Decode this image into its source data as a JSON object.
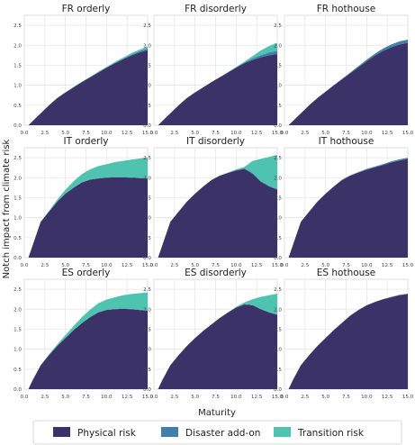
{
  "figure": {
    "xlabel": "Maturity",
    "ylabel": "Notch impact from climate risk"
  },
  "legend": {
    "items": [
      {
        "label": "Physical risk",
        "color": "#3b3268"
      },
      {
        "label": "Disaster add-on",
        "color": "#3f7fab"
      },
      {
        "label": "Transition risk",
        "color": "#4ec3b0"
      }
    ]
  },
  "chart_data": {
    "type": "area",
    "stacked": true,
    "x": [
      0.5,
      1,
      2,
      3,
      4,
      5,
      6,
      7,
      8,
      9,
      10,
      11,
      12,
      13,
      14,
      15
    ],
    "xticks": [
      "0.0",
      "2.5",
      "5.0",
      "7.5",
      "10.0",
      "12.5",
      "15.0"
    ],
    "xlim": [
      0,
      15
    ],
    "layout": {
      "rows": 3,
      "cols": 3,
      "sharey": "row"
    },
    "rows": [
      {
        "ylim": [
          0,
          2.75
        ],
        "yticks": [
          "0.0",
          "0.5",
          "1.0",
          "1.5",
          "2.0",
          "2.5"
        ]
      },
      {
        "ylim": [
          0,
          2.75
        ],
        "yticks": [
          "0.0",
          "0.5",
          "1.0",
          "1.5",
          "2.0",
          "2.5"
        ]
      },
      {
        "ylim": [
          0,
          2.75
        ],
        "yticks": [
          "0.0",
          "0.5",
          "1.0",
          "1.5",
          "2.0",
          "2.5"
        ]
      }
    ],
    "legend_placement": "bottom-center",
    "grid": true,
    "panels": [
      {
        "title": "FR orderly",
        "row": 0,
        "col": 0,
        "series": [
          {
            "name": "Physical risk",
            "values": [
              0.0,
              0.1,
              0.3,
              0.5,
              0.68,
              0.82,
              0.95,
              1.08,
              1.2,
              1.32,
              1.44,
              1.55,
              1.65,
              1.74,
              1.82,
              1.88
            ]
          },
          {
            "name": "Disaster add-on",
            "values": [
              0,
              0,
              0,
              0,
              0,
              0,
              0,
              0,
              0,
              0,
              0,
              0,
              0.01,
              0.02,
              0.03,
              0.04
            ]
          },
          {
            "name": "Transition risk",
            "values": [
              0,
              0,
              0,
              0,
              0,
              0,
              0.01,
              0.01,
              0.01,
              0.02,
              0.02,
              0.03,
              0.03,
              0.04,
              0.04,
              0.05
            ]
          }
        ]
      },
      {
        "title": "FR disorderly",
        "row": 0,
        "col": 1,
        "series": [
          {
            "name": "Physical risk",
            "values": [
              0.0,
              0.1,
              0.3,
              0.5,
              0.68,
              0.82,
              0.95,
              1.08,
              1.2,
              1.32,
              1.44,
              1.55,
              1.63,
              1.7,
              1.75,
              1.78
            ]
          },
          {
            "name": "Disaster add-on",
            "values": [
              0,
              0,
              0,
              0,
              0,
              0,
              0,
              0,
              0,
              0,
              0.01,
              0.02,
              0.04,
              0.05,
              0.07,
              0.08
            ]
          },
          {
            "name": "Transition risk",
            "values": [
              0,
              0,
              0,
              0,
              0,
              0,
              0,
              0,
              0,
              0.01,
              0.01,
              0.02,
              0.06,
              0.12,
              0.16,
              0.2
            ]
          }
        ]
      },
      {
        "title": "FR hothouse",
        "row": 0,
        "col": 2,
        "series": [
          {
            "name": "Physical risk",
            "values": [
              0.0,
              0.1,
              0.3,
              0.5,
              0.68,
              0.84,
              1.0,
              1.15,
              1.3,
              1.45,
              1.6,
              1.74,
              1.86,
              1.95,
              2.02,
              2.06
            ]
          },
          {
            "name": "Disaster add-on",
            "values": [
              0,
              0,
              0,
              0,
              0,
              0,
              0,
              0.01,
              0.02,
              0.03,
              0.04,
              0.05,
              0.06,
              0.07,
              0.08,
              0.08
            ]
          },
          {
            "name": "Transition risk",
            "values": [
              0,
              0,
              0,
              0,
              0,
              0,
              0,
              0,
              0,
              0,
              0,
              0,
              0,
              0,
              0,
              0
            ]
          }
        ]
      },
      {
        "title": "IT orderly",
        "row": 1,
        "col": 0,
        "series": [
          {
            "name": "Physical risk",
            "values": [
              0.0,
              0.3,
              0.9,
              1.15,
              1.4,
              1.6,
              1.75,
              1.88,
              1.95,
              1.98,
              2.0,
              2.01,
              2.01,
              2.0,
              1.99,
              1.98
            ]
          },
          {
            "name": "Disaster add-on",
            "values": [
              0,
              0,
              0,
              0,
              0,
              0,
              0.01,
              0.01,
              0.01,
              0.01,
              0.01,
              0.01,
              0.01,
              0.01,
              0.01,
              0.01
            ]
          },
          {
            "name": "Transition risk",
            "values": [
              0,
              0,
              0,
              0.02,
              0.05,
              0.1,
              0.15,
              0.2,
              0.25,
              0.3,
              0.33,
              0.37,
              0.4,
              0.44,
              0.48,
              0.52
            ]
          }
        ]
      },
      {
        "title": "IT disorderly",
        "row": 1,
        "col": 1,
        "series": [
          {
            "name": "Physical risk",
            "values": [
              0.0,
              0.3,
              0.9,
              1.15,
              1.4,
              1.6,
              1.78,
              1.94,
              2.05,
              2.12,
              2.18,
              2.22,
              2.1,
              1.9,
              1.78,
              1.7
            ]
          },
          {
            "name": "Disaster add-on",
            "values": [
              0,
              0,
              0,
              0,
              0,
              0,
              0,
              0,
              0,
              0,
              0.01,
              0.02,
              0.02,
              0.02,
              0.02,
              0.02
            ]
          },
          {
            "name": "Transition risk",
            "values": [
              0,
              0,
              0,
              0,
              0,
              0,
              0,
              0,
              0,
              0.01,
              0.02,
              0.03,
              0.3,
              0.55,
              0.72,
              0.85
            ]
          }
        ]
      },
      {
        "title": "IT hothouse",
        "row": 1,
        "col": 2,
        "series": [
          {
            "name": "Physical risk",
            "values": [
              0.0,
              0.3,
              0.9,
              1.15,
              1.4,
              1.6,
              1.78,
              1.94,
              2.05,
              2.13,
              2.2,
              2.26,
              2.32,
              2.38,
              2.43,
              2.47
            ]
          },
          {
            "name": "Disaster add-on",
            "values": [
              0,
              0,
              0,
              0,
              0,
              0,
              0,
              0.01,
              0.01,
              0.01,
              0.02,
              0.02,
              0.02,
              0.03,
              0.03,
              0.03
            ]
          },
          {
            "name": "Transition risk",
            "values": [
              0,
              0,
              0,
              0,
              0,
              0,
              0,
              0,
              0,
              0,
              0,
              0,
              0,
              0,
              0,
              0
            ]
          }
        ]
      },
      {
        "title": "ES orderly",
        "row": 2,
        "col": 0,
        "series": [
          {
            "name": "Physical risk",
            "values": [
              0.0,
              0.22,
              0.6,
              0.85,
              1.08,
              1.28,
              1.48,
              1.65,
              1.8,
              1.92,
              1.98,
              2.0,
              2.01,
              2.0,
              1.98,
              1.96
            ]
          },
          {
            "name": "Disaster add-on",
            "values": [
              0,
              0,
              0,
              0,
              0,
              0,
              0,
              0.01,
              0.01,
              0.01,
              0.01,
              0.01,
              0.01,
              0.01,
              0.01,
              0.01
            ]
          },
          {
            "name": "Transition risk",
            "values": [
              0,
              0,
              0,
              0.02,
              0.04,
              0.07,
              0.1,
              0.14,
              0.18,
              0.22,
              0.25,
              0.29,
              0.33,
              0.37,
              0.41,
              0.45
            ]
          }
        ]
      },
      {
        "title": "ES disorderly",
        "row": 2,
        "col": 1,
        "series": [
          {
            "name": "Physical risk",
            "values": [
              0.0,
              0.22,
              0.6,
              0.85,
              1.08,
              1.28,
              1.46,
              1.62,
              1.78,
              1.92,
              2.04,
              2.12,
              2.1,
              2.0,
              1.92,
              1.86
            ]
          },
          {
            "name": "Disaster add-on",
            "values": [
              0,
              0,
              0,
              0,
              0,
              0,
              0,
              0,
              0,
              0,
              0.01,
              0.01,
              0.01,
              0.01,
              0.01,
              0.01
            ]
          },
          {
            "name": "Transition risk",
            "values": [
              0,
              0,
              0,
              0,
              0,
              0,
              0,
              0,
              0,
              0,
              0.01,
              0.04,
              0.14,
              0.3,
              0.42,
              0.52
            ]
          }
        ]
      },
      {
        "title": "ES hothouse",
        "row": 2,
        "col": 2,
        "series": [
          {
            "name": "Physical risk",
            "values": [
              0.0,
              0.22,
              0.6,
              0.85,
              1.08,
              1.28,
              1.48,
              1.66,
              1.84,
              1.98,
              2.1,
              2.18,
              2.25,
              2.3,
              2.35,
              2.38
            ]
          },
          {
            "name": "Disaster add-on",
            "values": [
              0,
              0,
              0,
              0,
              0,
              0,
              0,
              0,
              0,
              0,
              0,
              0,
              0,
              0.01,
              0.01,
              0.01
            ]
          },
          {
            "name": "Transition risk",
            "values": [
              0,
              0,
              0,
              0,
              0,
              0,
              0,
              0,
              0,
              0,
              0,
              0,
              0,
              0,
              0,
              0
            ]
          }
        ]
      }
    ]
  }
}
